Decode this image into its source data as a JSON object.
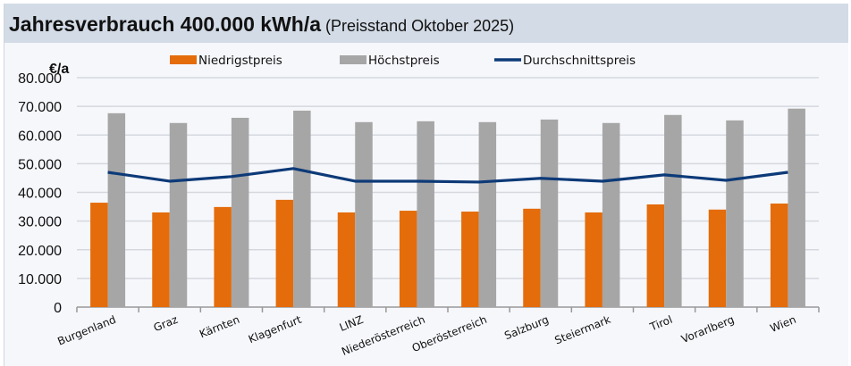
{
  "chart_data": {
    "type": "bar",
    "title": "Jahresverbrauch 400.000 kWh/a",
    "subtitle": "(Preisstand Oktober 2025)",
    "ylabel": "€/a",
    "xlabel": "",
    "ylim": [
      0,
      80000
    ],
    "yticks": [
      "0",
      "10.000",
      "20.000",
      "30.000",
      "40.000",
      "50.000",
      "60.000",
      "70.000",
      "80.000"
    ],
    "grid": true,
    "legend_position": "top",
    "categories": [
      "Burgenland",
      "Graz",
      "Kärnten",
      "Klagenfurt",
      "LINZ",
      "Niederösterreich",
      "Oberösterreich",
      "Salzburg",
      "Steiermark",
      "Tirol",
      "Vorarlberg",
      "Wien"
    ],
    "series": [
      {
        "name": "Niedrigstpreis",
        "type": "bar",
        "color": "#e46c0a",
        "values": [
          36400,
          33000,
          34900,
          37400,
          33000,
          33600,
          33300,
          34300,
          33000,
          35800,
          34000,
          36100
        ]
      },
      {
        "name": "Höchstpreis",
        "type": "bar",
        "color": "#a6a6a6",
        "values": [
          67600,
          64200,
          66000,
          68500,
          64500,
          64800,
          64500,
          65400,
          64200,
          67000,
          65100,
          69200
        ]
      },
      {
        "name": "Durchschnittspreis",
        "type": "line",
        "color": "#0d3a78",
        "values": [
          47000,
          43900,
          45500,
          48300,
          43900,
          43900,
          43600,
          44900,
          43900,
          46100,
          44200,
          47000
        ]
      }
    ]
  }
}
